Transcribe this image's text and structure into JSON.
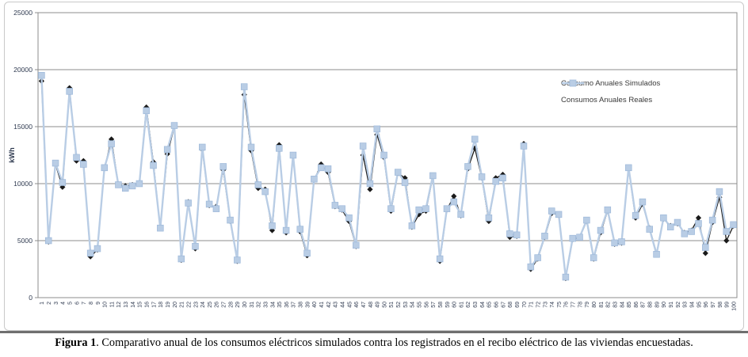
{
  "caption": {
    "label": "Figura 1",
    "text": ". Comparativo anual de los consumos eléctricos simulados contra los registrados en el recibo eléctrico de las viviendas encuestadas."
  },
  "colors": {
    "simulated_line": "#1a1a1a",
    "real_line": "#b9cde5",
    "real_marker_edge": "#9db8d9",
    "gridline": "#8c8c8c",
    "tick_text": "#2f3a50",
    "frame_border": "#c9c9c9",
    "separator": "#6f6f6f"
  },
  "chart_data": {
    "type": "line",
    "title": "",
    "xlabel": "",
    "ylabel": "kWh",
    "ylim": [
      0,
      25000
    ],
    "yticks": [
      0,
      5000,
      10000,
      15000,
      20000,
      25000
    ],
    "grid": true,
    "legend_position": "inside-upper-right",
    "categories": [
      1,
      2,
      3,
      4,
      5,
      6,
      7,
      8,
      9,
      10,
      11,
      12,
      13,
      14,
      15,
      16,
      17,
      18,
      19,
      20,
      21,
      22,
      23,
      24,
      25,
      26,
      27,
      28,
      29,
      30,
      31,
      32,
      33,
      34,
      35,
      36,
      37,
      38,
      39,
      40,
      41,
      42,
      43,
      44,
      45,
      46,
      47,
      48,
      49,
      50,
      51,
      52,
      53,
      54,
      55,
      56,
      57,
      58,
      59,
      60,
      61,
      62,
      63,
      64,
      65,
      66,
      67,
      68,
      69,
      70,
      71,
      72,
      73,
      74,
      75,
      76,
      77,
      78,
      79,
      80,
      81,
      82,
      83,
      84,
      85,
      86,
      87,
      88,
      89,
      90,
      91,
      92,
      93,
      94,
      95,
      96,
      97,
      98,
      99,
      100
    ],
    "series": [
      {
        "name": "Consumo Anuales Simulados",
        "marker": "diamond",
        "color": "#1a1a1a",
        "values": [
          19000,
          4900,
          11700,
          9700,
          18400,
          12000,
          12000,
          3600,
          4200,
          11300,
          13900,
          9900,
          9800,
          9900,
          10000,
          16700,
          11900,
          6100,
          12600,
          15000,
          3300,
          8400,
          4300,
          13000,
          8100,
          8000,
          11200,
          6700,
          3200,
          17800,
          12900,
          9600,
          9500,
          5900,
          13400,
          5700,
          12400,
          5800,
          3700,
          10300,
          11700,
          11000,
          8000,
          7700,
          6700,
          4500,
          12500,
          9500,
          14300,
          12300,
          7600,
          10900,
          10500,
          6200,
          7300,
          7600,
          10600,
          3200,
          7700,
          8900,
          7200,
          11300,
          13100,
          10500,
          6700,
          10500,
          10800,
          5300,
          5400,
          13500,
          2500,
          3400,
          5300,
          7400,
          7300,
          1700,
          5100,
          5300,
          6700,
          3400,
          5700,
          7600,
          4700,
          4800,
          11300,
          7000,
          8200,
          6100,
          3900,
          6900,
          6300,
          6500,
          5700,
          5900,
          7000,
          3900,
          6600,
          8800,
          5000,
          6300
        ]
      },
      {
        "name": "Consumos Anuales Reales",
        "marker": "square",
        "color": "#b9cde5",
        "values": [
          19500,
          5000,
          11800,
          10100,
          18100,
          12300,
          11700,
          3900,
          4300,
          11400,
          13500,
          9900,
          9600,
          9800,
          10000,
          16400,
          11600,
          6100,
          13000,
          15100,
          3400,
          8300,
          4500,
          13200,
          8200,
          7800,
          11500,
          6800,
          3300,
          18500,
          13200,
          9900,
          9300,
          6300,
          13100,
          5900,
          12500,
          6000,
          3900,
          10400,
          11400,
          11300,
          8100,
          7800,
          7000,
          4600,
          13300,
          10000,
          14800,
          12500,
          7800,
          11000,
          10100,
          6300,
          7700,
          7800,
          10700,
          3400,
          7800,
          8400,
          7300,
          11500,
          13900,
          10600,
          7000,
          10200,
          10500,
          5600,
          5500,
          13300,
          2700,
          3500,
          5400,
          7600,
          7300,
          1800,
          5200,
          5300,
          6800,
          3500,
          5900,
          7700,
          4800,
          4900,
          11400,
          7200,
          8400,
          6000,
          3800,
          7000,
          6200,
          6600,
          5600,
          5800,
          6500,
          4400,
          6800,
          9300,
          5800,
          6400
        ]
      }
    ]
  }
}
